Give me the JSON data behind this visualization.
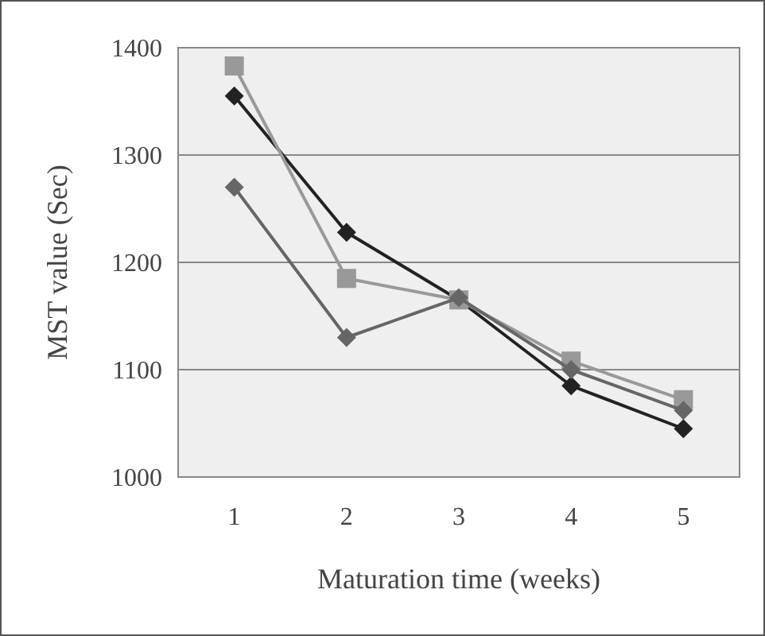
{
  "chart_data": {
    "type": "line",
    "xlabel": "Maturation time (weeks)",
    "ylabel": "MST value (Sec)",
    "categories": [
      "1",
      "2",
      "3",
      "4",
      "5"
    ],
    "series": [
      {
        "color": "#222222",
        "marker": "diamond",
        "values": [
          1355,
          1228,
          1165,
          1085,
          1045
        ]
      },
      {
        "color": "#999999",
        "marker": "square",
        "values": [
          1383,
          1185,
          1165,
          1108,
          1072
        ]
      },
      {
        "color": "#666666",
        "marker": "diamond",
        "values": [
          1270,
          1130,
          1167,
          1100,
          1062
        ]
      }
    ],
    "ylim": [
      1000,
      1400
    ],
    "yticks": [
      1000,
      1100,
      1200,
      1300,
      1400
    ],
    "grid": "y",
    "line_style": "solid"
  }
}
